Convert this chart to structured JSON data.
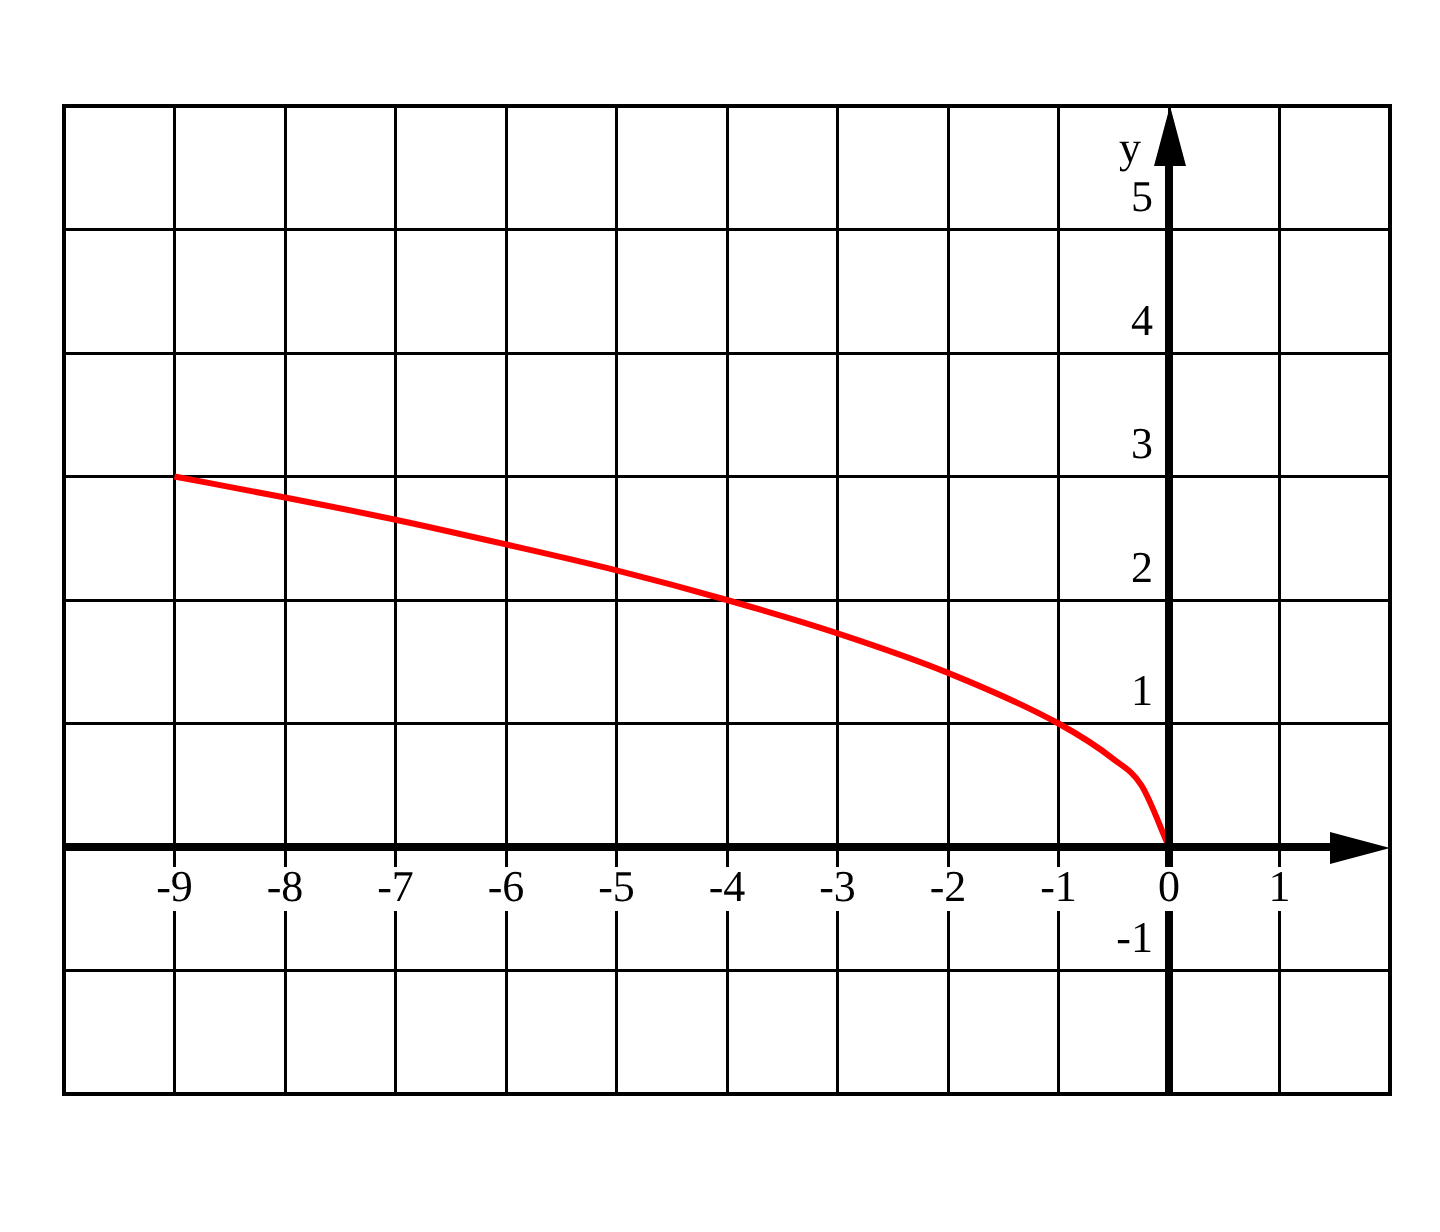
{
  "chart_data": {
    "type": "line",
    "ylabel": "y",
    "x": [
      -9,
      -8,
      -7,
      -6,
      -5,
      -4,
      -3,
      -2,
      -1,
      -0.5,
      -0.25,
      0
    ],
    "values": [
      3,
      2.83,
      2.65,
      2.45,
      2.24,
      2,
      1.73,
      1.41,
      1,
      0.71,
      0.5,
      0
    ],
    "color": "#ff0000",
    "xlim": [
      -10,
      2
    ],
    "ylim": [
      -2,
      6
    ],
    "xticks": [
      -9,
      -8,
      -7,
      -6,
      -5,
      -4,
      -3,
      -2,
      -1,
      0,
      1
    ],
    "yticks": [
      -1,
      1,
      2,
      3,
      4,
      5
    ],
    "grid": true
  }
}
